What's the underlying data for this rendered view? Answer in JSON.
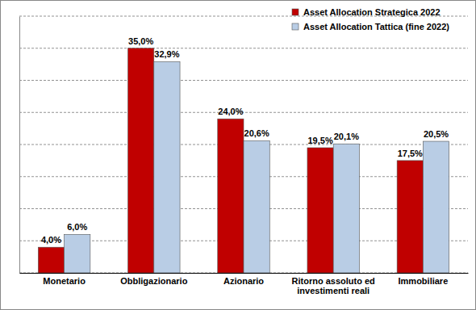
{
  "chart_data": {
    "type": "bar",
    "categories": [
      "Monetario",
      "Obbligazionario",
      "Azionario",
      "Ritorno assoluto ed investimenti reali",
      "Immobiliare"
    ],
    "series": [
      {
        "name": "Asset Allocation Strategica 2022",
        "color": "#c00000",
        "values": [
          4.0,
          35.0,
          24.0,
          19.5,
          17.5
        ],
        "value_labels": [
          "4,0%",
          "35,0%",
          "24,0%",
          "19,5%",
          "17,5%"
        ]
      },
      {
        "name": "Asset Allocation Tattica (fine 2022)",
        "color": "#b9cde5",
        "values": [
          6.0,
          32.9,
          20.6,
          20.1,
          20.5
        ],
        "value_labels": [
          "6,0%",
          "32,9%",
          "20,6%",
          "20,1%",
          "20,5%"
        ]
      }
    ],
    "ylim": [
      0,
      40
    ],
    "yticks": [
      0,
      5,
      10,
      15,
      20,
      25,
      30,
      35,
      40
    ],
    "grid": true,
    "legend": "top-right",
    "data_labels": true,
    "tick_labels": "x"
  }
}
